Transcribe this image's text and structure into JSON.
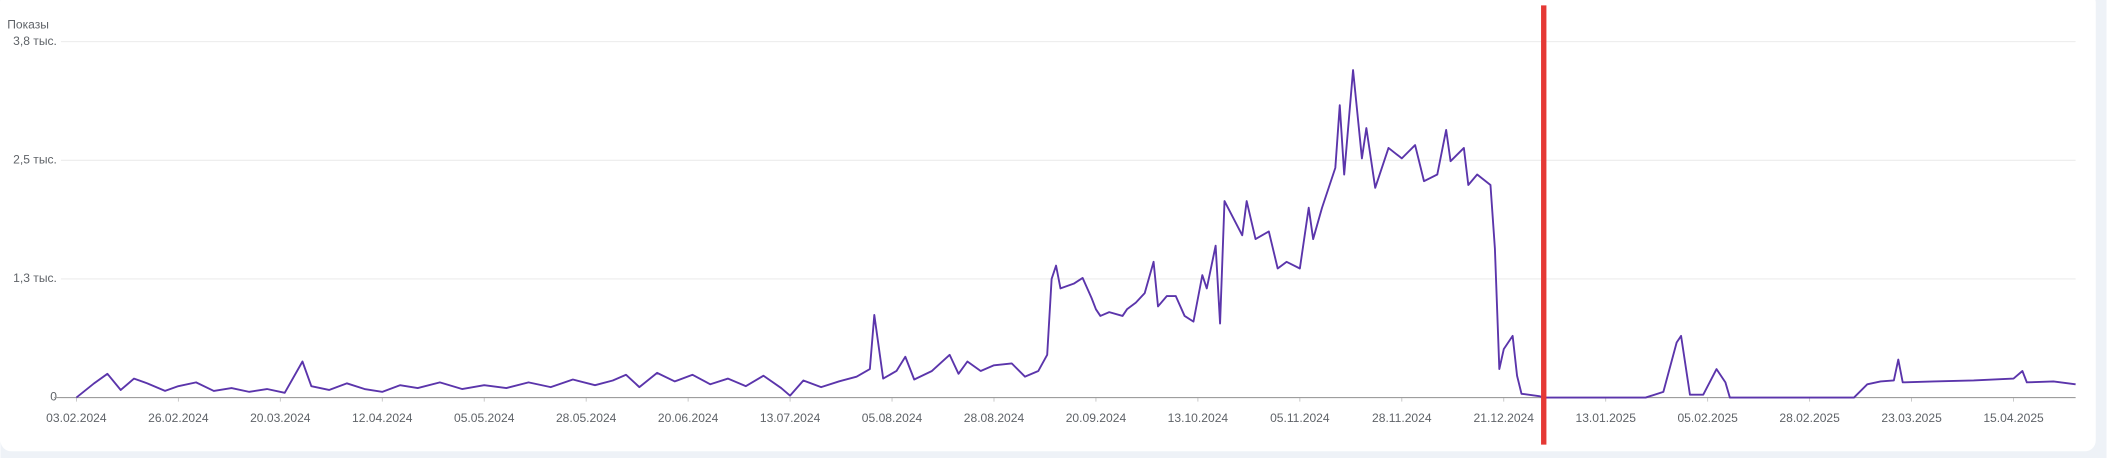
{
  "chart_data": {
    "type": "line",
    "ylabel": "Показы",
    "color": "#5b35ab",
    "grid": true,
    "ylim": [
      0,
      3750
    ],
    "yticks": [
      0,
      {
        "value": 1250,
        "label": "1,3 тыс."
      },
      {
        "value": 2500,
        "label": "2,5 тыс."
      },
      {
        "value": 3750,
        "label": "3,8 тыс."
      }
    ],
    "xlim": [
      "29.01.2024",
      "29.04.2025"
    ],
    "xticks": [
      "03.02.2024",
      "26.02.2024",
      "20.03.2024",
      "12.04.2024",
      "05.05.2024",
      "28.05.2024",
      "20.06.2024",
      "13.07.2024",
      "05.08.2024",
      "28.08.2024",
      "20.09.2024",
      "13.10.2024",
      "05.11.2024",
      "28.11.2024",
      "21.12.2024",
      "13.01.2025",
      "05.02.2025",
      "28.02.2025",
      "23.03.2025",
      "15.04.2025"
    ],
    "x": [
      "03.02.2024",
      "07.02.2024",
      "10.02.2024",
      "13.02.2024",
      "16.02.2024",
      "19.02.2024",
      "23.02.2024",
      "26.02.2024",
      "01.03.2024",
      "05.03.2024",
      "09.03.2024",
      "13.03.2024",
      "17.03.2024",
      "21.03.2024",
      "25.03.2024",
      "27.03.2024",
      "31.03.2024",
      "04.04.2024",
      "08.04.2024",
      "12.04.2024",
      "16.04.2024",
      "20.04.2024",
      "25.04.2024",
      "30.04.2024",
      "05.05.2024",
      "10.05.2024",
      "15.05.2024",
      "20.05.2024",
      "25.05.2024",
      "30.05.2024",
      "03.06.2024",
      "06.06.2024",
      "09.06.2024",
      "13.06.2024",
      "17.06.2024",
      "21.06.2024",
      "25.06.2024",
      "29.06.2024",
      "03.07.2024",
      "07.07.2024",
      "11.07.2024",
      "13.07.2024",
      "16.07.2024",
      "20.07.2024",
      "24.07.2024",
      "28.07.2024",
      "31.07.2024",
      "01.08.2024",
      "03.08.2024",
      "06.08.2024",
      "08.08.2024",
      "10.08.2024",
      "14.08.2024",
      "18.08.2024",
      "20.08.2024",
      "22.08.2024",
      "25.08.2024",
      "28.08.2024",
      "01.09.2024",
      "04.09.2024",
      "07.09.2024",
      "09.09.2024",
      "10.09.2024",
      "11.09.2024",
      "12.09.2024",
      "15.09.2024",
      "17.09.2024",
      "19.09.2024",
      "20.09.2024",
      "21.09.2024",
      "23.09.2024",
      "26.09.2024",
      "27.09.2024",
      "29.09.2024",
      "01.10.2024",
      "03.10.2024",
      "04.10.2024",
      "06.10.2024",
      "08.10.2024",
      "10.10.2024",
      "12.10.2024",
      "14.10.2024",
      "15.10.2024",
      "17.10.2024",
      "18.10.2024",
      "19.10.2024",
      "23.10.2024",
      "24.10.2024",
      "26.10.2024",
      "29.10.2024",
      "31.10.2024",
      "02.11.2024",
      "05.11.2024",
      "07.11.2024",
      "08.11.2024",
      "10.11.2024",
      "13.11.2024",
      "14.11.2024",
      "15.11.2024",
      "17.11.2024",
      "19.11.2024",
      "20.11.2024",
      "22.11.2024",
      "25.11.2024",
      "28.11.2024",
      "01.12.2024",
      "03.12.2024",
      "06.12.2024",
      "08.12.2024",
      "09.12.2024",
      "12.12.2024",
      "13.12.2024",
      "15.12.2024",
      "18.12.2024",
      "19.12.2024",
      "20.12.2024",
      "21.12.2024",
      "23.12.2024",
      "24.12.2024",
      "25.12.2024",
      "29.12.2024",
      "30.12.2024",
      "22.01.2025",
      "26.01.2025",
      "29.01.2025",
      "30.01.2025",
      "01.02.2025",
      "04.02.2025",
      "07.02.2025",
      "09.02.2025",
      "10.02.2025",
      "10.03.2025",
      "13.03.2025",
      "16.03.2025",
      "19.03.2025",
      "20.03.2025",
      "21.03.2025",
      "28.03.2025",
      "06.04.2025",
      "15.04.2025",
      "17.04.2025",
      "18.04.2025",
      "24.04.2025",
      "29.04.2025"
    ],
    "values": [
      0,
      150,
      250,
      80,
      200,
      150,
      70,
      120,
      160,
      70,
      100,
      60,
      90,
      50,
      380,
      120,
      80,
      150,
      90,
      60,
      130,
      100,
      160,
      90,
      130,
      100,
      160,
      110,
      190,
      130,
      180,
      240,
      110,
      260,
      170,
      240,
      140,
      200,
      120,
      230,
      100,
      20,
      180,
      110,
      170,
      220,
      300,
      870,
      200,
      280,
      430,
      190,
      280,
      450,
      250,
      380,
      280,
      340,
      360,
      220,
      280,
      450,
      1250,
      1390,
      1150,
      1200,
      1260,
      1050,
      930,
      860,
      900,
      860,
      930,
      1000,
      1100,
      1430,
      960,
      1070,
      1070,
      860,
      800,
      1290,
      1150,
      1600,
      780,
      2070,
      1710,
      2070,
      1670,
      1750,
      1360,
      1430,
      1360,
      2000,
      1670,
      2000,
      2420,
      3080,
      2350,
      3450,
      2520,
      2840,
      2210,
      2630,
      2520,
      2660,
      2280,
      2350,
      2820,
      2490,
      2630,
      2240,
      2350,
      2240,
      1570,
      300,
      510,
      650,
      230,
      40,
      15,
      0,
      0,
      60,
      580,
      650,
      30,
      30,
      300,
      160,
      0,
      0,
      140,
      170,
      180,
      400,
      160,
      170,
      180,
      200,
      280,
      160,
      170,
      140
    ]
  }
}
